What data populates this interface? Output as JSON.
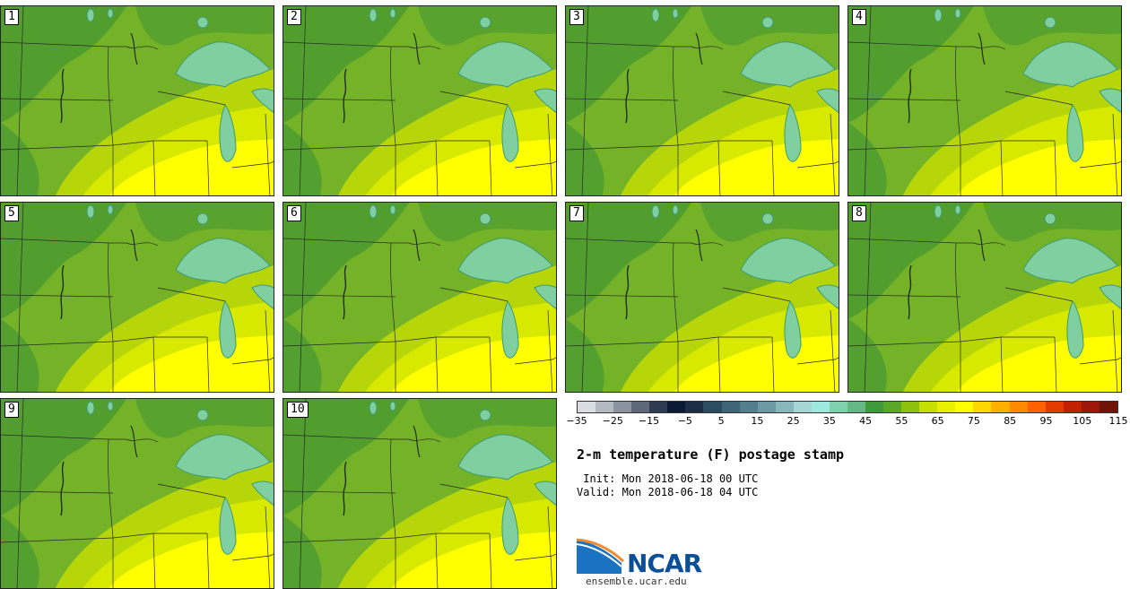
{
  "title": "2-m temperature (F) postage stamp",
  "init_line": " Init: Mon 2018-06-18 00 UTC",
  "valid_line": "Valid: Mon 2018-06-18 04 UTC",
  "logo": {
    "name": "NCAR",
    "url": "ensemble.ucar.edu"
  },
  "panels": [
    {
      "label": "1"
    },
    {
      "label": "2"
    },
    {
      "label": "3"
    },
    {
      "label": "4"
    },
    {
      "label": "5"
    },
    {
      "label": "6"
    },
    {
      "label": "7"
    },
    {
      "label": "8"
    },
    {
      "label": "9"
    },
    {
      "label": "10"
    }
  ],
  "colorbar": {
    "colors": [
      "#d9dce1",
      "#b5bac2",
      "#8c93a0",
      "#5f6878",
      "#2f3b52",
      "#0c1a33",
      "#1c2f45",
      "#2c4c60",
      "#3e6677",
      "#537f8c",
      "#6b9aa4",
      "#88b8bc",
      "#a6d6d4",
      "#9ee8dc",
      "#7fd0ad",
      "#64b885",
      "#3f9a3c",
      "#5aa82a",
      "#8cc20d",
      "#c5e000",
      "#e8ef00",
      "#ffff00",
      "#ffd700",
      "#ffb000",
      "#ff8a00",
      "#ff6000",
      "#e33a00",
      "#c02200",
      "#9c1808",
      "#6e1408"
    ],
    "ticks": [
      "−35",
      "−25",
      "−15",
      "−5",
      "5",
      "15",
      "25",
      "35",
      "45",
      "55",
      "65",
      "75",
      "85",
      "95",
      "105",
      "115"
    ]
  },
  "map_colors": {
    "dark_green": "#4e9b30",
    "mid_green": "#74b228",
    "yellow_green": "#b6d60a",
    "lime": "#d8e900",
    "yellow": "#ffff00",
    "lake": "#7fcfa0",
    "lake_edge": "#3f9a70"
  }
}
